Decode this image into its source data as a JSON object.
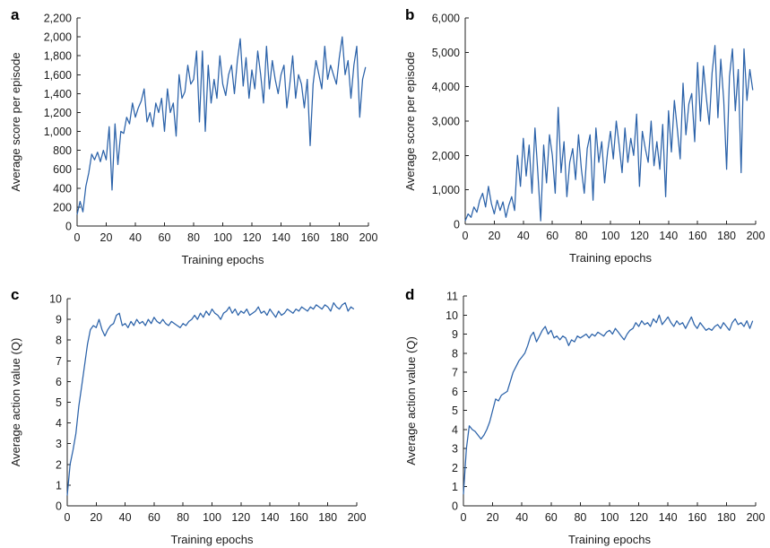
{
  "colors": {
    "series": "#2b62a9",
    "axis": "#222222"
  },
  "chart_data": [
    {
      "panel_label": "a",
      "type": "line",
      "xlabel": "Training epochs",
      "ylabel": "Average score per episode",
      "xlim": [
        0,
        200
      ],
      "ylim": [
        0,
        2200
      ],
      "xticks": [
        0,
        20,
        40,
        60,
        80,
        100,
        120,
        140,
        160,
        180,
        200
      ],
      "yticks": [
        0,
        200,
        400,
        600,
        800,
        1000,
        1200,
        1400,
        1600,
        1800,
        2000,
        2200
      ],
      "yticks_labels": [
        "0",
        "200",
        "400",
        "600",
        "800",
        "1,000",
        "1,200",
        "1,400",
        "1,600",
        "1,800",
        "2,000",
        "2,200"
      ],
      "grid": false,
      "x": [
        0,
        2,
        4,
        6,
        8,
        10,
        12,
        14,
        16,
        18,
        20,
        22,
        24,
        26,
        28,
        30,
        32,
        34,
        36,
        38,
        40,
        42,
        44,
        46,
        48,
        50,
        52,
        54,
        56,
        58,
        60,
        62,
        64,
        66,
        68,
        70,
        72,
        74,
        76,
        78,
        80,
        82,
        84,
        86,
        88,
        90,
        92,
        94,
        96,
        98,
        100,
        102,
        104,
        106,
        108,
        110,
        112,
        114,
        116,
        118,
        120,
        122,
        124,
        126,
        128,
        130,
        132,
        134,
        136,
        138,
        140,
        142,
        144,
        146,
        148,
        150,
        152,
        154,
        156,
        158,
        160,
        162,
        164,
        166,
        168,
        170,
        172,
        174,
        176,
        178,
        180,
        182,
        184,
        186,
        188,
        190,
        192,
        194,
        196,
        198
      ],
      "y": [
        120,
        260,
        150,
        420,
        560,
        760,
        700,
        780,
        680,
        800,
        700,
        1050,
        380,
        1080,
        650,
        1000,
        980,
        1150,
        1080,
        1300,
        1150,
        1250,
        1320,
        1450,
        1100,
        1200,
        1050,
        1300,
        1200,
        1350,
        1000,
        1450,
        1200,
        1300,
        950,
        1600,
        1350,
        1420,
        1700,
        1500,
        1550,
        1850,
        1100,
        1850,
        1000,
        1700,
        1300,
        1550,
        1350,
        1800,
        1500,
        1380,
        1600,
        1700,
        1400,
        1750,
        1980,
        1480,
        1780,
        1350,
        1650,
        1450,
        1850,
        1600,
        1300,
        1900,
        1450,
        1750,
        1550,
        1400,
        1600,
        1700,
        1250,
        1500,
        1800,
        1350,
        1600,
        1500,
        1250,
        1550,
        850,
        1500,
        1750,
        1600,
        1450,
        1900,
        1550,
        1700,
        1600,
        1500,
        1780,
        2000,
        1600,
        1750,
        1350,
        1700,
        1900,
        1150,
        1550,
        1680
      ]
    },
    {
      "panel_label": "b",
      "type": "line",
      "xlabel": "Training epochs",
      "ylabel": "Average score per episode",
      "xlim": [
        0,
        200
      ],
      "ylim": [
        0,
        6000
      ],
      "xticks": [
        0,
        20,
        40,
        60,
        80,
        100,
        120,
        140,
        160,
        180,
        200
      ],
      "yticks": [
        0,
        1000,
        2000,
        3000,
        4000,
        5000,
        6000
      ],
      "yticks_labels": [
        "0",
        "1,000",
        "2,000",
        "3,000",
        "4,000",
        "5,000",
        "6,000"
      ],
      "grid": false,
      "x": [
        0,
        2,
        4,
        6,
        8,
        10,
        12,
        14,
        16,
        18,
        20,
        22,
        24,
        26,
        28,
        30,
        32,
        34,
        36,
        38,
        40,
        42,
        44,
        46,
        48,
        50,
        52,
        54,
        56,
        58,
        60,
        62,
        64,
        66,
        68,
        70,
        72,
        74,
        76,
        78,
        80,
        82,
        84,
        86,
        88,
        90,
        92,
        94,
        96,
        98,
        100,
        102,
        104,
        106,
        108,
        110,
        112,
        114,
        116,
        118,
        120,
        122,
        124,
        126,
        128,
        130,
        132,
        134,
        136,
        138,
        140,
        142,
        144,
        146,
        148,
        150,
        152,
        154,
        156,
        158,
        160,
        162,
        164,
        166,
        168,
        170,
        172,
        174,
        176,
        178,
        180,
        182,
        184,
        186,
        188,
        190,
        192,
        194,
        196,
        198
      ],
      "y": [
        100,
        300,
        200,
        500,
        350,
        700,
        900,
        500,
        1100,
        600,
        300,
        700,
        400,
        650,
        200,
        550,
        800,
        400,
        2000,
        1100,
        2500,
        1400,
        2300,
        900,
        2800,
        1500,
        100,
        2300,
        1200,
        2600,
        2000,
        900,
        3400,
        1500,
        2400,
        800,
        1800,
        2200,
        1300,
        2600,
        1600,
        900,
        2200,
        2600,
        700,
        2800,
        1800,
        2400,
        1200,
        2100,
        2700,
        1900,
        3000,
        2300,
        1500,
        2800,
        1800,
        2500,
        2000,
        3200,
        1100,
        2700,
        2200,
        1800,
        3000,
        1700,
        2400,
        1600,
        2900,
        800,
        3300,
        2100,
        3600,
        2800,
        1900,
        4100,
        2600,
        3500,
        3800,
        2400,
        4700,
        3000,
        4600,
        3700,
        2900,
        4400,
        5200,
        3100,
        4800,
        3600,
        1600,
        4300,
        5100,
        3300,
        4500,
        1500,
        5100,
        3600,
        4500,
        3900
      ]
    },
    {
      "panel_label": "c",
      "type": "line",
      "xlabel": "Training epochs",
      "ylabel": "Average action value (Q)",
      "xlim": [
        0,
        200
      ],
      "ylim": [
        0,
        10
      ],
      "xticks": [
        0,
        20,
        40,
        60,
        80,
        100,
        120,
        140,
        160,
        180,
        200
      ],
      "yticks": [
        0,
        1,
        2,
        3,
        4,
        5,
        6,
        7,
        8,
        9,
        10
      ],
      "yticks_labels": [
        "0",
        "1",
        "2",
        "3",
        "4",
        "5",
        "6",
        "7",
        "8",
        "9",
        "10"
      ],
      "grid": false,
      "x": [
        0,
        2,
        4,
        6,
        8,
        10,
        12,
        14,
        16,
        18,
        20,
        22,
        24,
        26,
        28,
        30,
        32,
        34,
        36,
        38,
        40,
        42,
        44,
        46,
        48,
        50,
        52,
        54,
        56,
        58,
        60,
        62,
        64,
        66,
        68,
        70,
        72,
        74,
        76,
        78,
        80,
        82,
        84,
        86,
        88,
        90,
        92,
        94,
        96,
        98,
        100,
        102,
        104,
        106,
        108,
        110,
        112,
        114,
        116,
        118,
        120,
        122,
        124,
        126,
        128,
        130,
        132,
        134,
        136,
        138,
        140,
        142,
        144,
        146,
        148,
        150,
        152,
        154,
        156,
        158,
        160,
        162,
        164,
        166,
        168,
        170,
        172,
        174,
        176,
        178,
        180,
        182,
        184,
        186,
        188,
        190,
        192,
        194,
        196,
        198
      ],
      "y": [
        0.5,
        2.0,
        2.7,
        3.5,
        4.8,
        5.8,
        6.8,
        7.8,
        8.5,
        8.7,
        8.6,
        9.0,
        8.5,
        8.2,
        8.5,
        8.7,
        8.8,
        9.2,
        9.3,
        8.7,
        8.8,
        8.6,
        8.9,
        8.7,
        9.0,
        8.8,
        8.9,
        8.7,
        9.0,
        8.8,
        9.1,
        8.9,
        8.8,
        9.0,
        8.8,
        8.7,
        8.9,
        8.8,
        8.7,
        8.6,
        8.8,
        8.7,
        8.9,
        9.0,
        9.2,
        9.0,
        9.3,
        9.1,
        9.4,
        9.2,
        9.5,
        9.3,
        9.2,
        9.0,
        9.3,
        9.4,
        9.6,
        9.3,
        9.5,
        9.2,
        9.4,
        9.3,
        9.5,
        9.2,
        9.3,
        9.4,
        9.6,
        9.3,
        9.4,
        9.2,
        9.5,
        9.3,
        9.1,
        9.4,
        9.2,
        9.3,
        9.5,
        9.4,
        9.3,
        9.5,
        9.4,
        9.6,
        9.5,
        9.4,
        9.6,
        9.5,
        9.7,
        9.6,
        9.5,
        9.7,
        9.6,
        9.4,
        9.8,
        9.6,
        9.5,
        9.7,
        9.8,
        9.4,
        9.6,
        9.5
      ]
    },
    {
      "panel_label": "d",
      "type": "line",
      "xlabel": "Training epochs",
      "ylabel": "Average action value (Q)",
      "xlim": [
        0,
        200
      ],
      "ylim": [
        0,
        11
      ],
      "xticks": [
        0,
        20,
        40,
        60,
        80,
        100,
        120,
        140,
        160,
        180,
        200
      ],
      "yticks": [
        0,
        1,
        2,
        3,
        4,
        5,
        6,
        7,
        8,
        9,
        10,
        11
      ],
      "yticks_labels": [
        "0",
        "1",
        "2",
        "3",
        "4",
        "5",
        "6",
        "7",
        "8",
        "9",
        "10",
        "11"
      ],
      "grid": false,
      "x": [
        0,
        2,
        4,
        6,
        8,
        10,
        12,
        14,
        16,
        18,
        20,
        22,
        24,
        26,
        28,
        30,
        32,
        34,
        36,
        38,
        40,
        42,
        44,
        46,
        48,
        50,
        52,
        54,
        56,
        58,
        60,
        62,
        64,
        66,
        68,
        70,
        72,
        74,
        76,
        78,
        80,
        82,
        84,
        86,
        88,
        90,
        92,
        94,
        96,
        98,
        100,
        102,
        104,
        106,
        108,
        110,
        112,
        114,
        116,
        118,
        120,
        122,
        124,
        126,
        128,
        130,
        132,
        134,
        136,
        138,
        140,
        142,
        144,
        146,
        148,
        150,
        152,
        154,
        156,
        158,
        160,
        162,
        164,
        166,
        168,
        170,
        172,
        174,
        176,
        178,
        180,
        182,
        184,
        186,
        188,
        190,
        192,
        194,
        196,
        198
      ],
      "y": [
        0.6,
        3.0,
        4.2,
        4.0,
        3.9,
        3.7,
        3.5,
        3.7,
        4.0,
        4.4,
        5.0,
        5.6,
        5.5,
        5.8,
        5.9,
        6.0,
        6.5,
        7.0,
        7.3,
        7.6,
        7.8,
        8.0,
        8.4,
        8.9,
        9.1,
        8.6,
        8.9,
        9.2,
        9.4,
        9.0,
        9.2,
        8.8,
        8.9,
        8.7,
        8.9,
        8.8,
        8.4,
        8.7,
        8.6,
        8.9,
        8.8,
        8.9,
        9.0,
        8.8,
        9.0,
        8.9,
        9.1,
        9.0,
        8.9,
        9.1,
        9.2,
        9.0,
        9.3,
        9.1,
        8.9,
        8.7,
        9.0,
        9.2,
        9.3,
        9.6,
        9.4,
        9.7,
        9.5,
        9.6,
        9.4,
        9.8,
        9.6,
        10.0,
        9.5,
        9.7,
        9.9,
        9.6,
        9.4,
        9.7,
        9.5,
        9.6,
        9.3,
        9.6,
        9.9,
        9.5,
        9.3,
        9.6,
        9.4,
        9.2,
        9.3,
        9.2,
        9.4,
        9.5,
        9.3,
        9.6,
        9.4,
        9.2,
        9.6,
        9.8,
        9.5,
        9.6,
        9.4,
        9.7,
        9.3,
        9.7
      ]
    }
  ]
}
